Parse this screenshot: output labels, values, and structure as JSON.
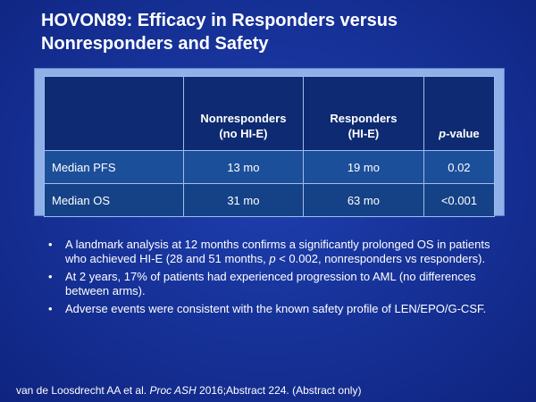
{
  "slide": {
    "title_line1": "HOVON89: Efficacy in Responders versus",
    "title_line2": "Nonresponders and Safety"
  },
  "table": {
    "headers": {
      "blank": "",
      "nonresponders_line1": "Nonresponders",
      "nonresponders_line2": "(no HI-E)",
      "responders_line1": "Responders",
      "responders_line2": "(HI-E)",
      "pvalue_italic": "p",
      "pvalue_rest": "-value"
    },
    "rows": [
      {
        "label": "Median PFS",
        "nonresponders": "13 mo",
        "responders": "19 mo",
        "p_value": "0.02"
      },
      {
        "label": "Median OS",
        "nonresponders": "31 mo",
        "responders": "63 mo",
        "p_value": "<0.001"
      }
    ]
  },
  "bullets": {
    "marker": "•",
    "item1_before_p": "A landmark analysis at 12 months confirms a significantly prolonged OS in patients who achieved HI-E (28 and 51 months, ",
    "item1_p": "p",
    "item1_after_p": " < 0.002, nonresponders vs responders).",
    "item2": "At 2 years, 17% of patients had experienced progression to AML (no differences between arms).",
    "item3": "Adverse events were consistent with the known safety profile of LEN/EPO/G-CSF."
  },
  "citation": {
    "authors": "van de Loosdrecht AA et al. ",
    "journal": "Proc ASH",
    "rest": " 2016;Abstract 224. (Abstract only)"
  },
  "colors": {
    "background": "#17339a",
    "table_frame": "#8fb0e8",
    "header_cell": "#0d2a72",
    "row1_cell": "#1c4f9a",
    "row2_cell": "#154286",
    "text": "#ffffff"
  }
}
